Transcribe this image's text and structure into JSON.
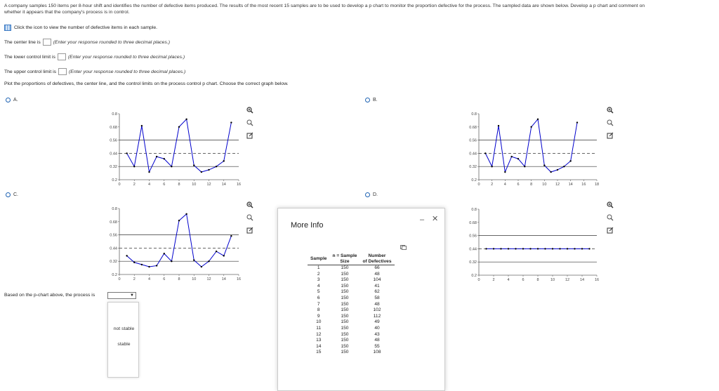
{
  "problem": {
    "intro_line1": "A company samples 150 items per 8-hour shift and identifies the number of defective items produced. The results of the most recent 15 samples are to be used to develop a p chart to monitor the proportion defective for the process. The sampled data are shown below. Develop a p chart and comment on",
    "intro_line2": "whether it appears that the company's process is in control.",
    "hint": "Click the icon to view the number of defective items in each sample."
  },
  "questions": {
    "center_line_label": "The center line is",
    "center_line_hint": "(Enter your response rounded to three decimal places.)",
    "lcl_label": "The lower control limit is",
    "lcl_hint": "(Enter your response rounded to three decimal places.)",
    "ucl_label": "The upper control limit is",
    "ucl_hint": "(Enter your response rounded to three decimal places.)",
    "plot_instruction": "Plot the proportions of defectives, the center line, and the control limits on the process control p chart. Choose the correct graph below."
  },
  "options": {
    "a": "A.",
    "b": "B.",
    "c": "C.",
    "d": "D."
  },
  "conclusion": {
    "label": "Based on the p-chart above, the process is",
    "selected": "",
    "dropdown_options": [
      "not stable",
      "stable"
    ]
  },
  "more_info": {
    "title": "More Info",
    "minimize": "–",
    "close": "✕",
    "col_sample": "Sample",
    "col_size_line1": "n = Sample",
    "col_size_line2": "Size",
    "col_def_line1": "Number",
    "col_def_line2": "of Defectives",
    "rows": [
      [
        "1",
        "150",
        "66"
      ],
      [
        "2",
        "150",
        "48"
      ],
      [
        "3",
        "150",
        "104"
      ],
      [
        "4",
        "150",
        "41"
      ],
      [
        "5",
        "150",
        "62"
      ],
      [
        "6",
        "150",
        "58"
      ],
      [
        "7",
        "150",
        "48"
      ],
      [
        "8",
        "150",
        "102"
      ],
      [
        "9",
        "150",
        "112"
      ],
      [
        "10",
        "150",
        "49"
      ],
      [
        "11",
        "150",
        "40"
      ],
      [
        "12",
        "150",
        "43"
      ],
      [
        "13",
        "150",
        "48"
      ],
      [
        "14",
        "150",
        "55"
      ],
      [
        "15",
        "150",
        "108"
      ]
    ]
  },
  "chart_data": [
    {
      "type": "line",
      "option": "A",
      "x": [
        1,
        2,
        3,
        4,
        5,
        6,
        7,
        8,
        9,
        10,
        11,
        12,
        13,
        14,
        15
      ],
      "series": [
        {
          "values": [
            0.44,
            0.32,
            0.69,
            0.27,
            0.41,
            0.39,
            0.32,
            0.68,
            0.75,
            0.33,
            0.27,
            0.29,
            0.32,
            0.37,
            0.72
          ]
        }
      ],
      "hlines": [
        {
          "y": 0.56,
          "style": "solid"
        },
        {
          "y": 0.44,
          "style": "dashed"
        },
        {
          "y": 0.32,
          "style": "solid"
        }
      ],
      "xlim": [
        0,
        16
      ],
      "ylim": [
        0.2,
        0.8
      ],
      "xticks": [
        "0",
        "2",
        "4",
        "6",
        "8",
        "10",
        "12",
        "14",
        "16"
      ],
      "yticks": [
        "0.2",
        "0.32",
        "0.44",
        "0.56",
        "0.68",
        "0.8"
      ]
    },
    {
      "type": "line",
      "option": "B",
      "x": [
        1,
        2,
        3,
        4,
        5,
        6,
        7,
        8,
        9,
        10,
        11,
        12,
        13,
        14,
        15
      ],
      "series": [
        {
          "values": [
            0.44,
            0.32,
            0.69,
            0.27,
            0.41,
            0.39,
            0.32,
            0.68,
            0.75,
            0.33,
            0.27,
            0.29,
            0.32,
            0.37,
            0.72
          ]
        }
      ],
      "hlines": [
        {
          "y": 0.56,
          "style": "solid"
        },
        {
          "y": 0.44,
          "style": "dashed"
        },
        {
          "y": 0.32,
          "style": "solid"
        }
      ],
      "xlim": [
        0,
        18
      ],
      "ylim": [
        0.2,
        0.8
      ],
      "xticks": [
        "0",
        "2",
        "4",
        "6",
        "8",
        "10",
        "12",
        "14",
        "16",
        "18"
      ],
      "yticks": [
        "0.2",
        "0.32",
        "0.44",
        "0.56",
        "0.68",
        "0.8"
      ]
    },
    {
      "type": "line",
      "option": "C",
      "x": [
        1,
        2,
        3,
        4,
        5,
        6,
        7,
        8,
        9,
        10,
        11,
        12,
        13,
        14,
        15
      ],
      "series": [
        {
          "values": [
            0.37,
            0.31,
            0.29,
            0.27,
            0.28,
            0.39,
            0.32,
            0.69,
            0.75,
            0.33,
            0.27,
            0.32,
            0.41,
            0.37,
            0.55
          ]
        }
      ],
      "hlines": [
        {
          "y": 0.56,
          "style": "solid"
        },
        {
          "y": 0.44,
          "style": "dashed"
        },
        {
          "y": 0.32,
          "style": "solid"
        }
      ],
      "xlim": [
        0,
        16
      ],
      "ylim": [
        0.2,
        0.8
      ],
      "xticks": [
        "0",
        "2",
        "4",
        "6",
        "8",
        "10",
        "12",
        "14",
        "16"
      ],
      "yticks": [
        "0.2",
        "0.32",
        "0.44",
        "0.56",
        "0.68",
        "0.8"
      ]
    },
    {
      "type": "line",
      "option": "D",
      "x": [
        1,
        2,
        3,
        4,
        5,
        6,
        7,
        8,
        9,
        10,
        11,
        12,
        13,
        14,
        15
      ],
      "series": [
        {
          "values": [
            0.44,
            0.44,
            0.44,
            0.44,
            0.44,
            0.44,
            0.44,
            0.44,
            0.44,
            0.44,
            0.44,
            0.44,
            0.44,
            0.44,
            0.44
          ]
        }
      ],
      "hlines": [
        {
          "y": 0.56,
          "style": "solid"
        },
        {
          "y": 0.44,
          "style": "dashed"
        },
        {
          "y": 0.32,
          "style": "solid"
        }
      ],
      "xlim": [
        0,
        16
      ],
      "ylim": [
        0.2,
        0.8
      ],
      "xticks": [
        "0",
        "2",
        "4",
        "6",
        "8",
        "10",
        "12",
        "14",
        "16"
      ],
      "yticks": [
        "0.2",
        "0.32",
        "0.44",
        "0.56",
        "0.68",
        "0.8"
      ]
    }
  ],
  "colors": {
    "series": "#0000cc",
    "accent": "#1f63b3"
  },
  "icons": [
    "zoom-in-icon",
    "zoom-out-icon",
    "popout-icon"
  ]
}
